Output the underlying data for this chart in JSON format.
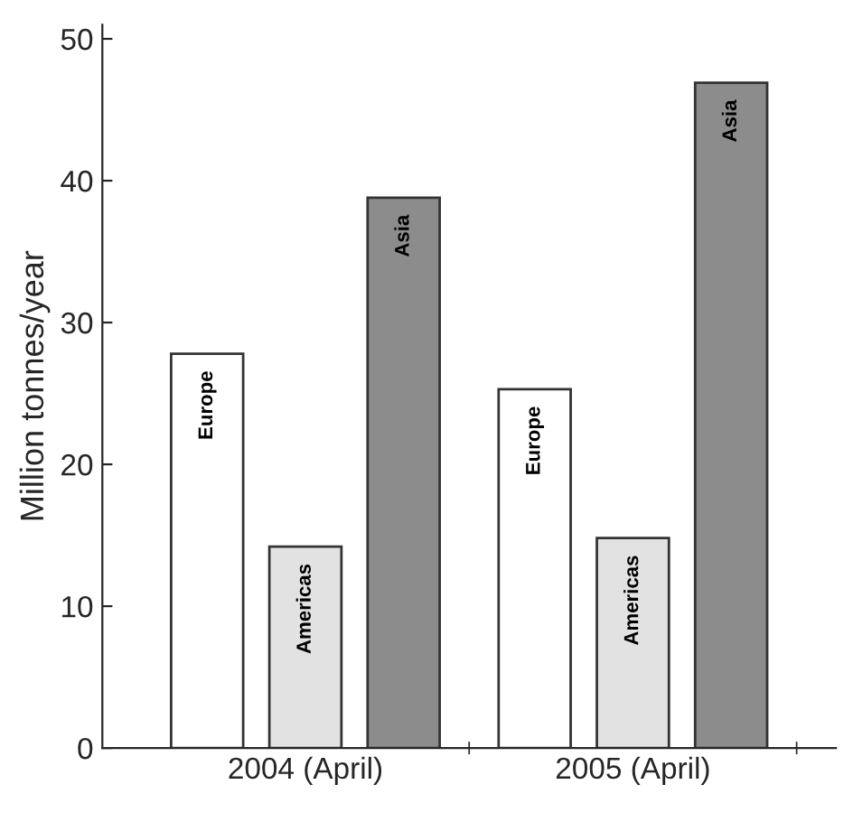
{
  "chart_data": {
    "type": "bar",
    "ylabel": "Million tonnes/year",
    "categories": [
      "2004 (April)",
      "2005 (April)"
    ],
    "series": [
      {
        "name": "Europe",
        "color": "#ffffff",
        "values": [
          27.8,
          25.3
        ]
      },
      {
        "name": "Americas",
        "color": "#e2e2e2",
        "values": [
          14.2,
          14.8
        ]
      },
      {
        "name": "Asia",
        "color": "#8c8c8c",
        "values": [
          38.8,
          46.9
        ]
      }
    ],
    "ylim": [
      0,
      51
    ],
    "yticks": [
      0,
      10,
      20,
      30,
      40,
      50
    ],
    "grid": false,
    "legend": false
  }
}
